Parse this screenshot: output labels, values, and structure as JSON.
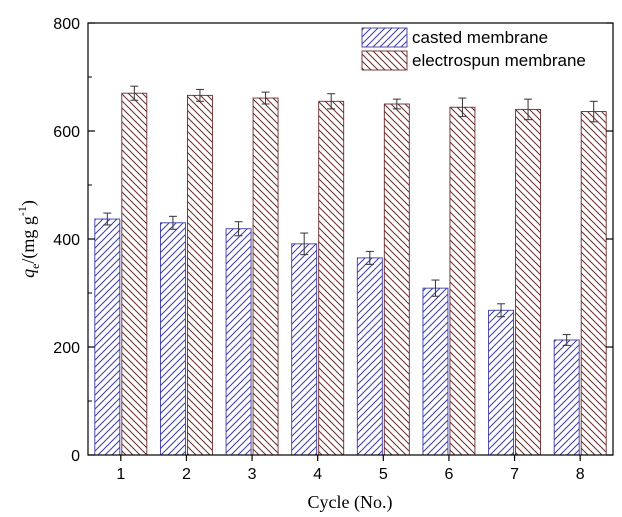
{
  "chart_data": {
    "type": "bar",
    "xlabel": "Cycle (No.)",
    "ylabel": {
      "main": "q",
      "sub": "e",
      "unit_prefix": "/(mg g",
      "sup": "-1",
      "unit_suffix": ")"
    },
    "categories": [
      "1",
      "2",
      "3",
      "4",
      "5",
      "6",
      "7",
      "8"
    ],
    "ylim": [
      0,
      800
    ],
    "yticks": [
      0,
      200,
      400,
      600,
      800
    ],
    "grid": false,
    "legend_position": "top-right",
    "series": [
      {
        "name": "casted membrane",
        "color": "#3a3aa8",
        "hatch": "diagonal-up",
        "values": [
          437,
          430,
          419,
          391,
          365,
          309,
          268,
          213
        ],
        "errors": [
          11,
          12,
          13,
          20,
          12,
          15,
          12,
          10
        ]
      },
      {
        "name": "electrospun membrane",
        "color": "#6b2a2a",
        "hatch": "diagonal-down",
        "values": [
          670,
          666,
          661,
          655,
          650,
          644,
          640,
          636
        ],
        "errors": [
          13,
          11,
          11,
          14,
          9,
          17,
          19,
          19
        ]
      }
    ]
  }
}
